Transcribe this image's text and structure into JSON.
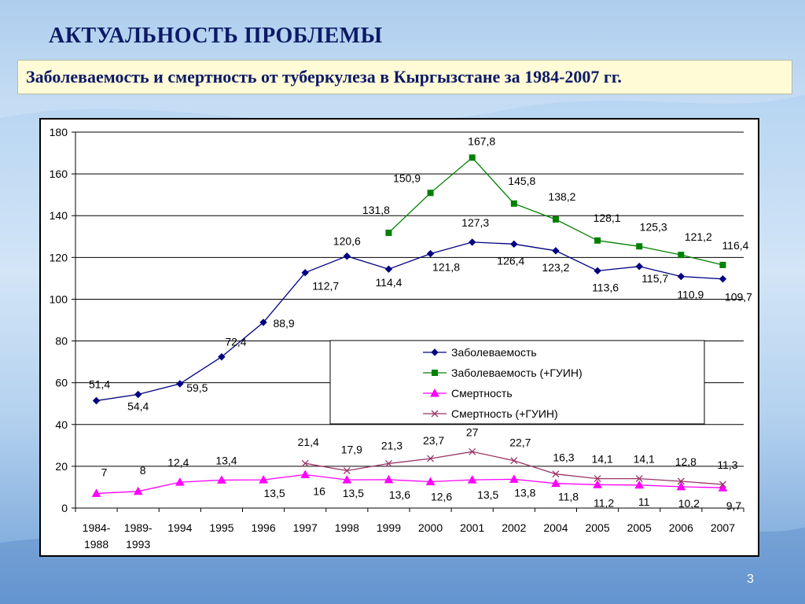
{
  "slide": {
    "title": "АКТУАЛЬНОСТЬ ПРОБЛЕМЫ",
    "subtitle": "Заболеваемость и смертность от туберкулеза в Кыргызстане за 1984-2007 гг.",
    "page_number": "3"
  },
  "colors": {
    "title_text": "#0d1a66",
    "subtitle_bg": "#fffbd7",
    "series_incidence": "#000080",
    "series_incidence_guin": "#008000",
    "series_mortality": "#ff00ff",
    "series_mortality_guin": "#993366"
  },
  "chart_data": {
    "type": "line",
    "title": "",
    "xlabel": "",
    "ylabel": "",
    "ylim": [
      0,
      180
    ],
    "yticks": [
      0,
      20,
      40,
      60,
      80,
      100,
      120,
      140,
      160,
      180
    ],
    "grid": "horizontal",
    "legend_placement": "center-right",
    "categories": [
      "1984-\n1988",
      "1989-\n1993",
      "1994",
      "1995",
      "1996",
      "1997",
      "1998",
      "1999",
      "2000",
      "2001",
      "2002",
      "2004",
      "2005",
      "2005",
      "2006",
      "2007"
    ],
    "series": [
      {
        "name": "Заболеваемость",
        "color": "#000080",
        "marker": "diamond",
        "values": [
          51.4,
          54.4,
          59.5,
          72.4,
          88.9,
          112.7,
          120.6,
          114.4,
          121.8,
          127.3,
          126.4,
          123.2,
          113.6,
          115.7,
          110.9,
          109.7
        ],
        "labels": [
          "51,4",
          "54,4",
          "59,5",
          "72,4",
          "88,9",
          "112,7",
          "120,6",
          "114,4",
          "121,8",
          "127,3",
          "126,4",
          "123,2",
          "113,6",
          "115,7",
          "110,9",
          "109,7"
        ]
      },
      {
        "name": "Заболеваемость (+ГУИН)",
        "color": "#008000",
        "marker": "square",
        "values": [
          null,
          null,
          null,
          null,
          null,
          null,
          null,
          131.8,
          150.9,
          167.8,
          145.8,
          138.2,
          128.1,
          125.3,
          121.2,
          116.4
        ],
        "labels": [
          null,
          null,
          null,
          null,
          null,
          null,
          null,
          "131,8",
          "150,9",
          "167,8",
          "145,8",
          "138,2",
          "128,1",
          "125,3",
          "121,2",
          "116,4"
        ]
      },
      {
        "name": "Смертность",
        "color": "#ff00ff",
        "marker": "triangle",
        "values": [
          7,
          8,
          12.4,
          13.4,
          13.5,
          16,
          13.5,
          13.6,
          12.6,
          13.5,
          13.8,
          11.8,
          11.2,
          11,
          10.2,
          9.7
        ],
        "labels": [
          "7",
          "8",
          "12,4",
          "13,4",
          "13,5",
          "16",
          "13,5",
          "13,6",
          "12,6",
          "13,5",
          "13,8",
          "11,8",
          "11,2",
          "11",
          "10,2",
          "9,7"
        ]
      },
      {
        "name": "Смертность (+ГУИН)",
        "color": "#993366",
        "marker": "x",
        "values": [
          null,
          null,
          null,
          null,
          null,
          21.4,
          17.9,
          21.3,
          23.7,
          27,
          22.7,
          16.3,
          14.1,
          14.1,
          12.8,
          11.3
        ],
        "labels": [
          null,
          null,
          null,
          null,
          null,
          "21,4",
          "17,9",
          "21,3",
          "23,7",
          "27",
          "22,7",
          "16,3",
          "14,1",
          "14,1",
          "12,8",
          "11,3"
        ]
      }
    ]
  }
}
